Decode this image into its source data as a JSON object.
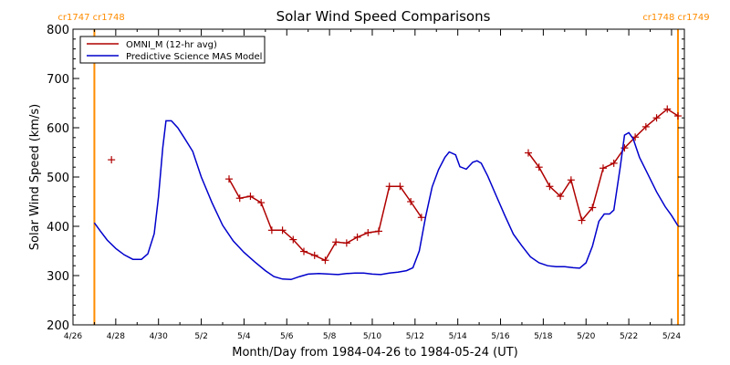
{
  "chart_data": {
    "type": "line",
    "title": "Solar Wind Speed Comparisons",
    "xlabel": "Month/Day from 1984-04-26 to 1984-05-24 (UT)",
    "ylabel": "Solar Wind Speed (km/s)",
    "x_unit": "day of month (April 26 = 26, May 1 = 31)",
    "xlim": [
      26,
      54.6
    ],
    "ylim": [
      200,
      800
    ],
    "x_ticks": [
      {
        "x": 26,
        "label": "4/26"
      },
      {
        "x": 28,
        "label": "4/28"
      },
      {
        "x": 30,
        "label": "4/30"
      },
      {
        "x": 32,
        "label": "5/2"
      },
      {
        "x": 34,
        "label": "5/4"
      },
      {
        "x": 36,
        "label": "5/6"
      },
      {
        "x": 38,
        "label": "5/8"
      },
      {
        "x": 40,
        "label": "5/10"
      },
      {
        "x": 42,
        "label": "5/12"
      },
      {
        "x": 44,
        "label": "5/14"
      },
      {
        "x": 46,
        "label": "5/16"
      },
      {
        "x": 48,
        "label": "5/18"
      },
      {
        "x": 50,
        "label": "5/20"
      },
      {
        "x": 52,
        "label": "5/22"
      },
      {
        "x": 54,
        "label": "5/24"
      }
    ],
    "y_ticks": [
      {
        "y": 200,
        "label": "200"
      },
      {
        "y": 300,
        "label": "300"
      },
      {
        "y": 400,
        "label": "400"
      },
      {
        "y": 500,
        "label": "500"
      },
      {
        "y": 600,
        "label": "600"
      },
      {
        "y": 700,
        "label": "700"
      },
      {
        "y": 800,
        "label": "800"
      }
    ],
    "grid": false,
    "legend_position": "top-left",
    "vertical_markers": [
      {
        "x": 27.0,
        "labels": [
          "cr1747",
          "cr1748"
        ],
        "color": "#ff8c00",
        "label_side": "left"
      },
      {
        "x": 54.3,
        "labels": [
          "cr1748",
          "cr1749"
        ],
        "color": "#ff8c00",
        "label_side": "right"
      }
    ],
    "series": [
      {
        "name": "OMNI_M (12-hr avg)",
        "color": "#b00000",
        "marker": "+",
        "segments": [
          [
            [
              27.8,
              535
            ]
          ],
          [
            [
              33.3,
              496
            ],
            [
              33.8,
              457
            ],
            [
              34.3,
              461
            ],
            [
              34.8,
              448
            ],
            [
              35.3,
              392
            ],
            [
              35.8,
              392
            ],
            [
              36.3,
              373
            ],
            [
              36.8,
              349
            ],
            [
              37.3,
              341
            ],
            [
              37.8,
              331
            ],
            [
              38.3,
              368
            ],
            [
              38.8,
              366
            ],
            [
              39.3,
              378
            ],
            [
              39.8,
              387
            ],
            [
              40.3,
              390
            ],
            [
              40.8,
              481
            ],
            [
              41.3,
              481
            ],
            [
              41.8,
              450
            ],
            [
              42.3,
              418
            ]
          ],
          [
            [
              47.3,
              549
            ],
            [
              47.8,
              520
            ],
            [
              48.3,
              481
            ],
            [
              48.8,
              461
            ],
            [
              49.3,
              494
            ],
            [
              49.8,
              412
            ],
            [
              50.3,
              438
            ],
            [
              50.8,
              518
            ],
            [
              51.3,
              528
            ],
            [
              51.8,
              559
            ],
            [
              52.3,
              581
            ],
            [
              52.8,
              602
            ],
            [
              53.3,
              620
            ],
            [
              53.8,
              638
            ],
            [
              54.3,
              624
            ]
          ]
        ]
      },
      {
        "name": "Predictive Science MAS Model",
        "color": "#0000cc",
        "marker": "none",
        "segments": [
          [
            [
              27.0,
              407
            ],
            [
              27.3,
              389
            ],
            [
              27.6,
              372
            ],
            [
              28.0,
              355
            ],
            [
              28.4,
              342
            ],
            [
              28.8,
              333
            ],
            [
              29.2,
              333
            ],
            [
              29.5,
              344
            ],
            [
              29.8,
              385
            ],
            [
              30.0,
              460
            ],
            [
              30.2,
              560
            ],
            [
              30.35,
              614
            ],
            [
              30.6,
              614
            ],
            [
              30.9,
              600
            ],
            [
              31.2,
              580
            ],
            [
              31.6,
              552
            ],
            [
              32.0,
              500
            ],
            [
              32.5,
              448
            ],
            [
              33.0,
              402
            ],
            [
              33.5,
              370
            ],
            [
              34.0,
              347
            ],
            [
              34.5,
              328
            ],
            [
              35.0,
              310
            ],
            [
              35.4,
              298
            ],
            [
              35.8,
              293
            ],
            [
              36.2,
              292
            ],
            [
              36.6,
              298
            ],
            [
              37.0,
              303
            ],
            [
              37.5,
              304
            ],
            [
              38.0,
              303
            ],
            [
              38.4,
              302
            ],
            [
              38.8,
              304
            ],
            [
              39.2,
              305
            ],
            [
              39.6,
              305
            ],
            [
              40.0,
              303
            ],
            [
              40.4,
              302
            ],
            [
              40.8,
              305
            ],
            [
              41.2,
              307
            ],
            [
              41.6,
              310
            ],
            [
              41.9,
              316
            ],
            [
              42.2,
              350
            ],
            [
              42.5,
              420
            ],
            [
              42.8,
              480
            ],
            [
              43.1,
              515
            ],
            [
              43.4,
              540
            ],
            [
              43.6,
              551
            ],
            [
              43.9,
              545
            ],
            [
              44.1,
              521
            ],
            [
              44.4,
              516
            ],
            [
              44.7,
              530
            ],
            [
              44.9,
              533
            ],
            [
              45.1,
              528
            ],
            [
              45.4,
              502
            ],
            [
              45.8,
              462
            ],
            [
              46.2,
              422
            ],
            [
              46.6,
              384
            ],
            [
              47.0,
              360
            ],
            [
              47.4,
              338
            ],
            [
              47.8,
              326
            ],
            [
              48.2,
              320
            ],
            [
              48.6,
              318
            ],
            [
              49.0,
              318
            ],
            [
              49.4,
              316
            ],
            [
              49.7,
              315
            ],
            [
              50.0,
              326
            ],
            [
              50.3,
              360
            ],
            [
              50.6,
              410
            ],
            [
              50.85,
              425
            ],
            [
              51.1,
              425
            ],
            [
              51.3,
              433
            ],
            [
              51.6,
              520
            ],
            [
              51.8,
              585
            ],
            [
              52.0,
              590
            ],
            [
              52.2,
              578
            ],
            [
              52.5,
              540
            ],
            [
              52.9,
              505
            ],
            [
              53.3,
              470
            ],
            [
              53.7,
              440
            ],
            [
              54.0,
              422
            ],
            [
              54.3,
              401
            ]
          ]
        ]
      }
    ]
  }
}
